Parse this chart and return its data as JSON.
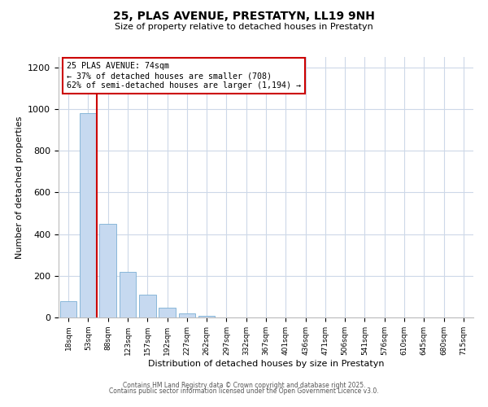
{
  "title": "25, PLAS AVENUE, PRESTATYN, LL19 9NH",
  "subtitle": "Size of property relative to detached houses in Prestatyn",
  "xlabel": "Distribution of detached houses by size in Prestatyn",
  "ylabel": "Number of detached properties",
  "bar_values": [
    80,
    980,
    450,
    220,
    110,
    47,
    18,
    8,
    0,
    0,
    0,
    0,
    0,
    0,
    0,
    0,
    0,
    0,
    0,
    0,
    0
  ],
  "bar_labels": [
    "18sqm",
    "53sqm",
    "88sqm",
    "123sqm",
    "157sqm",
    "192sqm",
    "227sqm",
    "262sqm",
    "297sqm",
    "332sqm",
    "367sqm",
    "401sqm",
    "436sqm",
    "471sqm",
    "506sqm",
    "541sqm",
    "576sqm",
    "610sqm",
    "645sqm",
    "680sqm",
    "715sqm"
  ],
  "bar_color": "#c6d9f0",
  "bar_edge_color": "#7aafd4",
  "vline_color": "#cc0000",
  "annotation_title": "25 PLAS AVENUE: 74sqm",
  "annotation_line1": "← 37% of detached houses are smaller (708)",
  "annotation_line2": "62% of semi-detached houses are larger (1,194) →",
  "annotation_box_color": "#ffffff",
  "annotation_box_edge": "#cc0000",
  "ylim": [
    0,
    1250
  ],
  "yticks": [
    0,
    200,
    400,
    600,
    800,
    1000,
    1200
  ],
  "footer1": "Contains HM Land Registry data © Crown copyright and database right 2025.",
  "footer2": "Contains public sector information licensed under the Open Government Licence v3.0.",
  "background_color": "#ffffff",
  "grid_color": "#cdd8e8"
}
